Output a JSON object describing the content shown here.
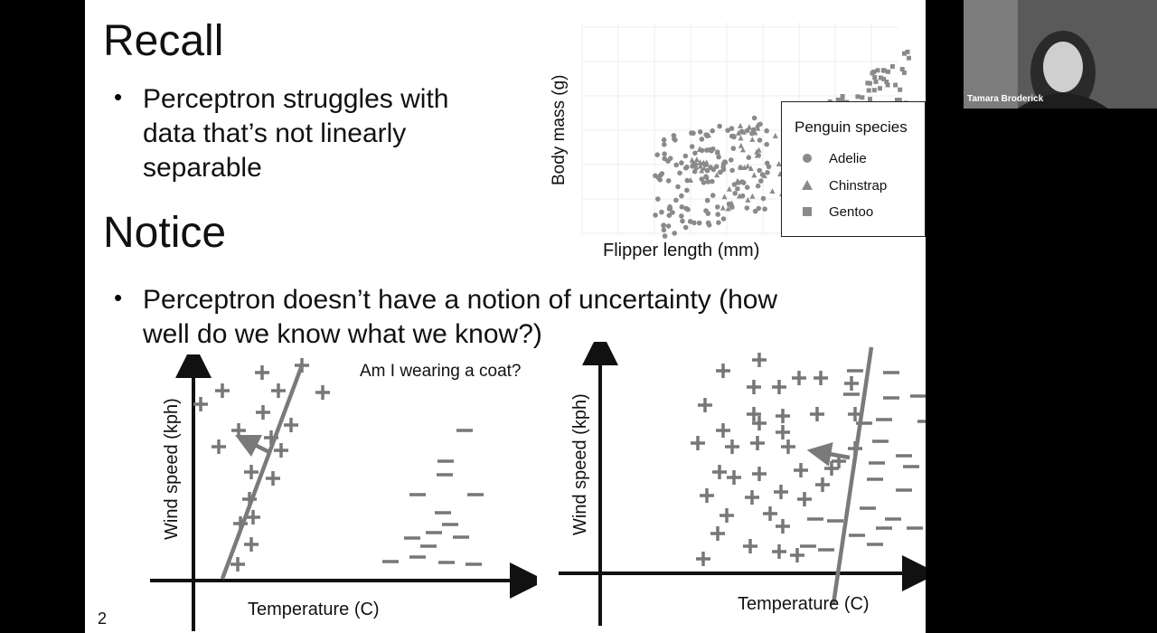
{
  "slide": {
    "page_number": "2",
    "recall_heading": "Recall",
    "recall_bullet_1": "Perceptron struggles with",
    "recall_bullet_2": "data that’s not linearly",
    "recall_bullet_3": "separable",
    "notice_heading": "Notice",
    "notice_bullet_1": "Perceptron doesn’t have a notion of uncertainty (how",
    "notice_bullet_2": "well do we know what we know?)"
  },
  "penguin_plot": {
    "xlabel": "Flipper length (mm)",
    "ylabel": "Body mass (g)",
    "legend_title": "Penguin species",
    "legend": [
      "Adelie",
      "Chinstrap",
      "Gentoo"
    ],
    "marker_color": "#8a8a8a"
  },
  "coat_plot_left": {
    "annotation": "Am I wearing a coat?",
    "xlabel": "Temperature (C)",
    "ylabel": "Wind speed (kph)"
  },
  "coat_plot_right": {
    "xlabel": "Temperature (C)",
    "ylabel": "Wind speed (kph)"
  },
  "webcam": {
    "name": "Tamara Broderick"
  }
}
